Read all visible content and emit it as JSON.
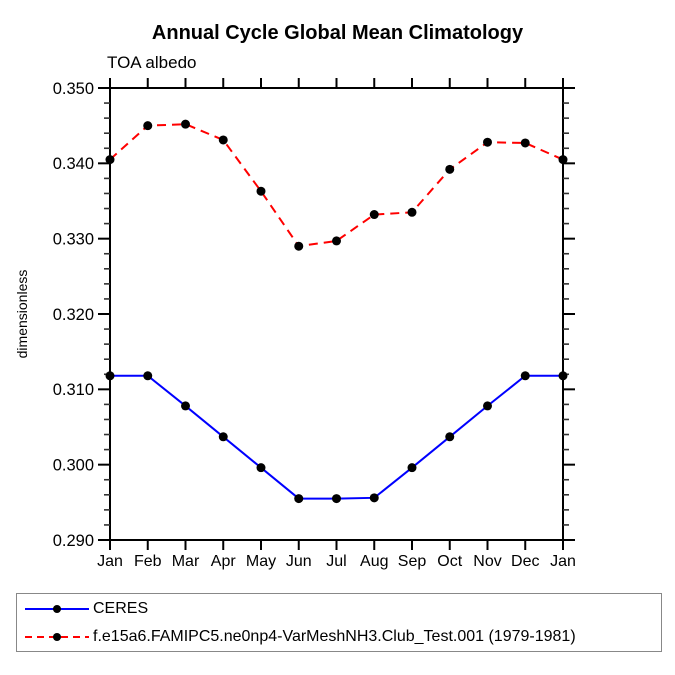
{
  "chart_data": {
    "type": "line",
    "title": "Annual Cycle Global Mean Climatology",
    "subtitle": "TOA albedo",
    "ylabel": "dimensionless",
    "xlabel": "",
    "categories": [
      "Jan",
      "Feb",
      "Mar",
      "Apr",
      "May",
      "Jun",
      "Jul",
      "Aug",
      "Sep",
      "Oct",
      "Nov",
      "Dec",
      "Jan"
    ],
    "ylim": [
      0.29,
      0.35
    ],
    "ytick_major_step": 0.01,
    "ytick_minor_step": 0.002,
    "ytick_label_format_decimals": 3,
    "grid": false,
    "legend_position": "bottom-left-boxed",
    "frame_color": "#000000",
    "marker": {
      "shape": "circle",
      "color": "#000000",
      "radius": 4.5
    },
    "series": [
      {
        "name": "CERES",
        "color": "#0000ff",
        "line_style": "solid",
        "dash": "none",
        "values": [
          0.3118,
          0.3118,
          0.3078,
          0.3037,
          0.2996,
          0.2955,
          0.2955,
          0.2956,
          0.2996,
          0.3037,
          0.3078,
          0.3118,
          0.3118
        ]
      },
      {
        "name": "f.e15a6.FAMIPC5.ne0np4-VarMeshNH3.Club_Test.001 (1979-1981)",
        "color": "#ff0000",
        "line_style": "dashed",
        "dash": "9,6",
        "values": [
          0.3405,
          0.345,
          0.3452,
          0.3431,
          0.3363,
          0.329,
          0.3297,
          0.3332,
          0.3335,
          0.3392,
          0.3428,
          0.3427,
          0.3405
        ]
      }
    ]
  }
}
